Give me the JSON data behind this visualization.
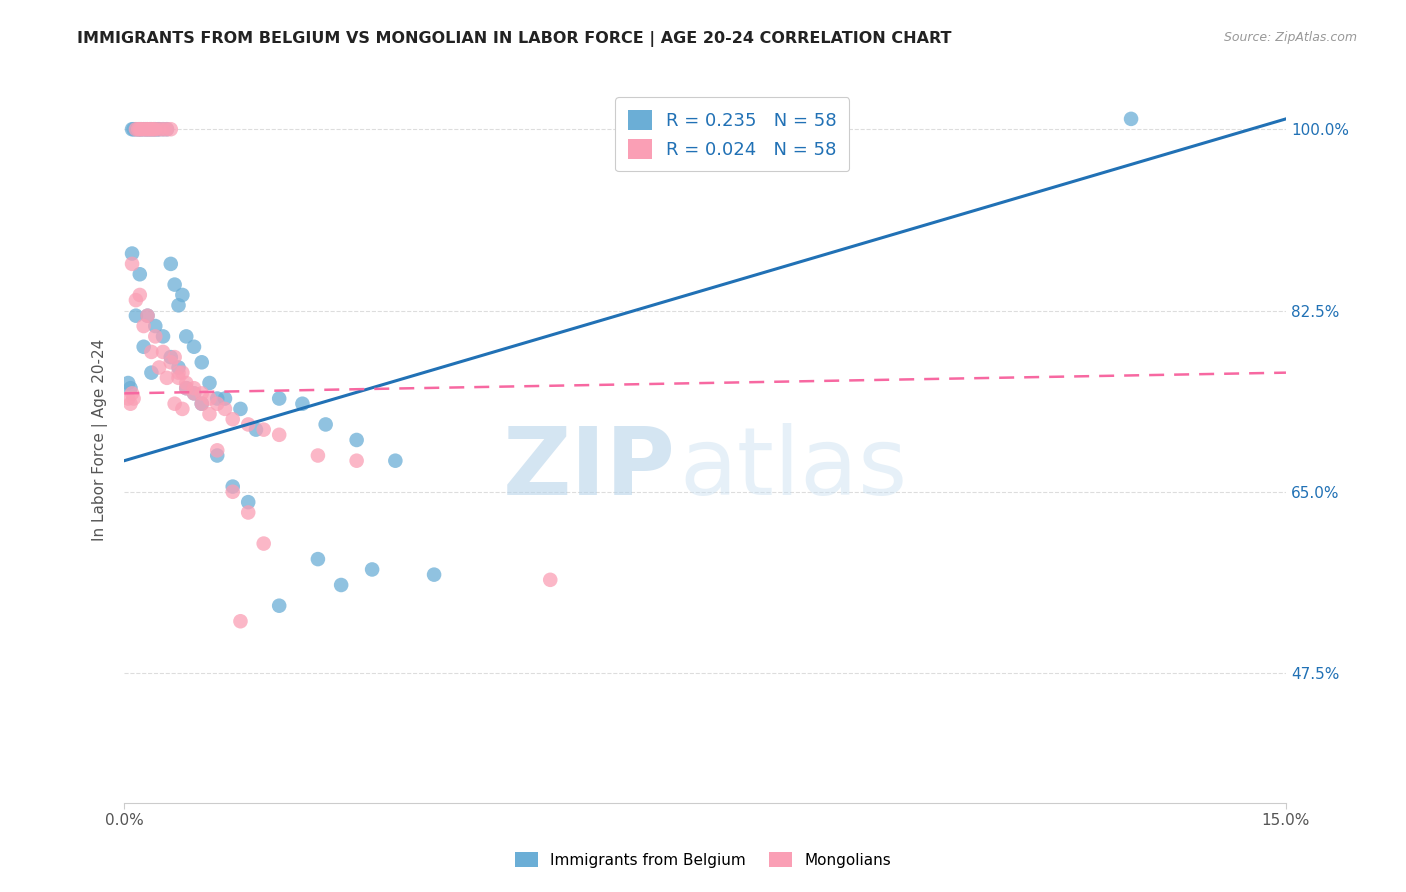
{
  "title": "IMMIGRANTS FROM BELGIUM VS MONGOLIAN IN LABOR FORCE | AGE 20-24 CORRELATION CHART",
  "source": "Source: ZipAtlas.com",
  "ylabel": "In Labor Force | Age 20-24",
  "xmin": 0.0,
  "xmax": 15.0,
  "ymin": 35.0,
  "ymax": 105.0,
  "yticks": [
    47.5,
    65.0,
    82.5,
    100.0
  ],
  "blue_color": "#6baed6",
  "pink_color": "#fa9fb5",
  "blue_line_color": "#2171b5",
  "pink_line_color": "#f768a1",
  "blue_line_x0": 0.0,
  "blue_line_y0": 68.0,
  "blue_line_x1": 15.0,
  "blue_line_y1": 101.0,
  "pink_line_x0": 0.0,
  "pink_line_y0": 74.5,
  "pink_line_x1": 15.0,
  "pink_line_y1": 76.5,
  "blue_scatter_x": [
    0.05,
    0.08,
    0.1,
    0.12,
    0.15,
    0.18,
    0.2,
    0.22,
    0.25,
    0.28,
    0.3,
    0.33,
    0.35,
    0.38,
    0.4,
    0.43,
    0.45,
    0.5,
    0.55,
    0.6,
    0.65,
    0.7,
    0.75,
    0.8,
    0.9,
    1.0,
    1.1,
    1.2,
    1.3,
    1.5,
    1.7,
    2.0,
    2.3,
    2.6,
    3.0,
    3.5,
    4.0,
    0.1,
    0.2,
    0.3,
    0.4,
    0.5,
    0.6,
    0.7,
    0.8,
    0.9,
    1.0,
    1.2,
    1.4,
    1.6,
    2.0,
    2.5,
    3.2,
    0.15,
    0.25,
    0.35,
    2.8,
    13.0
  ],
  "blue_scatter_y": [
    75.5,
    75.0,
    100.0,
    100.0,
    100.0,
    100.0,
    100.0,
    100.0,
    100.0,
    100.0,
    100.0,
    100.0,
    100.0,
    100.0,
    100.0,
    100.0,
    100.0,
    100.0,
    100.0,
    87.0,
    85.0,
    83.0,
    84.0,
    80.0,
    79.0,
    77.5,
    75.5,
    74.0,
    74.0,
    73.0,
    71.0,
    74.0,
    73.5,
    71.5,
    70.0,
    68.0,
    57.0,
    88.0,
    86.0,
    82.0,
    81.0,
    80.0,
    78.0,
    77.0,
    75.0,
    74.5,
    73.5,
    68.5,
    65.5,
    64.0,
    54.0,
    58.5,
    57.5,
    82.0,
    79.0,
    76.5,
    56.0,
    101.0
  ],
  "pink_scatter_x": [
    0.05,
    0.08,
    0.1,
    0.12,
    0.15,
    0.18,
    0.2,
    0.22,
    0.25,
    0.28,
    0.3,
    0.33,
    0.35,
    0.38,
    0.4,
    0.45,
    0.5,
    0.55,
    0.6,
    0.65,
    0.7,
    0.75,
    0.8,
    0.9,
    1.0,
    1.1,
    1.2,
    1.3,
    1.4,
    1.6,
    1.8,
    2.0,
    2.5,
    3.0,
    0.1,
    0.2,
    0.3,
    0.4,
    0.5,
    0.6,
    0.7,
    0.8,
    0.9,
    1.0,
    1.1,
    1.2,
    1.4,
    1.6,
    1.8,
    0.15,
    0.25,
    0.35,
    0.45,
    0.55,
    5.5,
    0.65,
    0.75,
    1.5
  ],
  "pink_scatter_y": [
    74.0,
    73.5,
    74.5,
    74.0,
    100.0,
    100.0,
    100.0,
    100.0,
    100.0,
    100.0,
    100.0,
    100.0,
    100.0,
    100.0,
    100.0,
    100.0,
    100.0,
    100.0,
    100.0,
    78.0,
    76.0,
    76.5,
    75.5,
    75.0,
    74.5,
    74.0,
    73.5,
    73.0,
    72.0,
    71.5,
    71.0,
    70.5,
    68.5,
    68.0,
    87.0,
    84.0,
    82.0,
    80.0,
    78.5,
    77.5,
    76.5,
    75.0,
    74.5,
    73.5,
    72.5,
    69.0,
    65.0,
    63.0,
    60.0,
    83.5,
    81.0,
    78.5,
    77.0,
    76.0,
    56.5,
    73.5,
    73.0,
    52.5
  ],
  "watermark_zip": "ZIP",
  "watermark_atlas": "atlas",
  "background_color": "#ffffff",
  "grid_color": "#dddddd"
}
